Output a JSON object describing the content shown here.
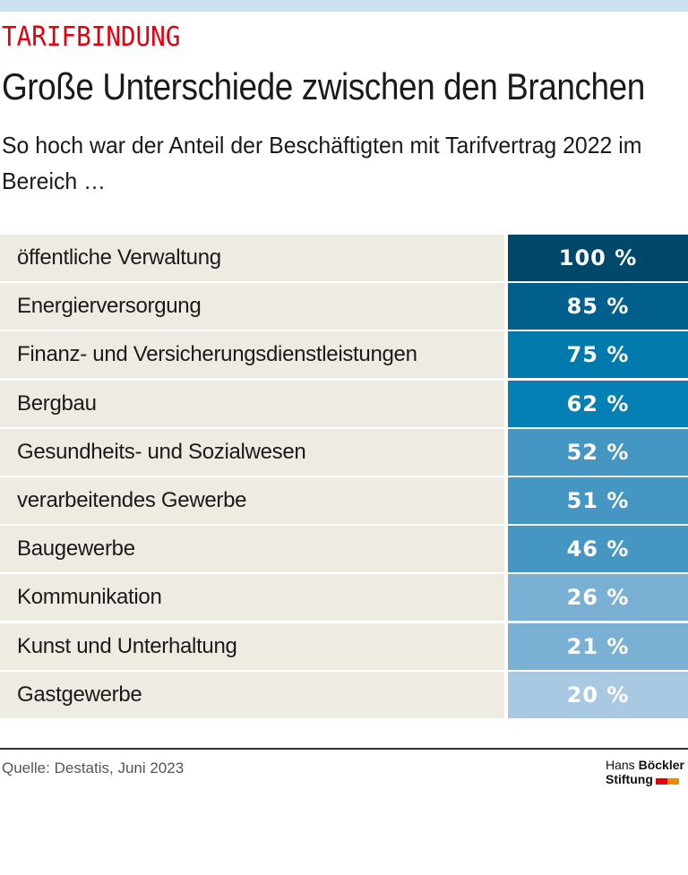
{
  "header": {
    "kicker": "TARIFBINDUNG",
    "title": "Große Unterschiede zwischen den Branchen",
    "subtitle": "So hoch war der Anteil der Beschäftigten mit Tarifvertrag 2022 im Bereich …"
  },
  "chart_data": {
    "type": "table",
    "unit": "%",
    "rows": [
      {
        "category": "öffentliche Verwaltung",
        "value": 100,
        "label": "100 %",
        "color": "#00486a"
      },
      {
        "category": "Energierversorgung",
        "value": 85,
        "label": "85 %",
        "color": "#005f8c"
      },
      {
        "category": "Finanz- und Versicherungsdienstleistungen",
        "value": 75,
        "label": "75 %",
        "color": "#0079ad"
      },
      {
        "category": "Bergbau",
        "value": 62,
        "label": "62 %",
        "color": "#0580b5"
      },
      {
        "category": "Gesundheits- und Sozialwesen",
        "value": 52,
        "label": "52 %",
        "color": "#4596c2"
      },
      {
        "category": "verarbeitendes Gewerbe",
        "value": 51,
        "label": "51 %",
        "color": "#4596c2"
      },
      {
        "category": "Baugewerbe",
        "value": 46,
        "label": "46 %",
        "color": "#4596c2"
      },
      {
        "category": "Kommunikation",
        "value": 26,
        "label": "26 %",
        "color": "#7ab0d3"
      },
      {
        "category": "Kunst und Unterhaltung",
        "value": 21,
        "label": "21 %",
        "color": "#7ab0d3"
      },
      {
        "category": "Gastgewerbe",
        "value": 20,
        "label": "20 %",
        "color": "#a9c9e3"
      }
    ]
  },
  "footer": {
    "source": "Quelle: Destatis, Juni 2023",
    "logo": {
      "line1_light": "Hans",
      "line1_bold": "Böckler",
      "line2": "Stiftung"
    }
  }
}
